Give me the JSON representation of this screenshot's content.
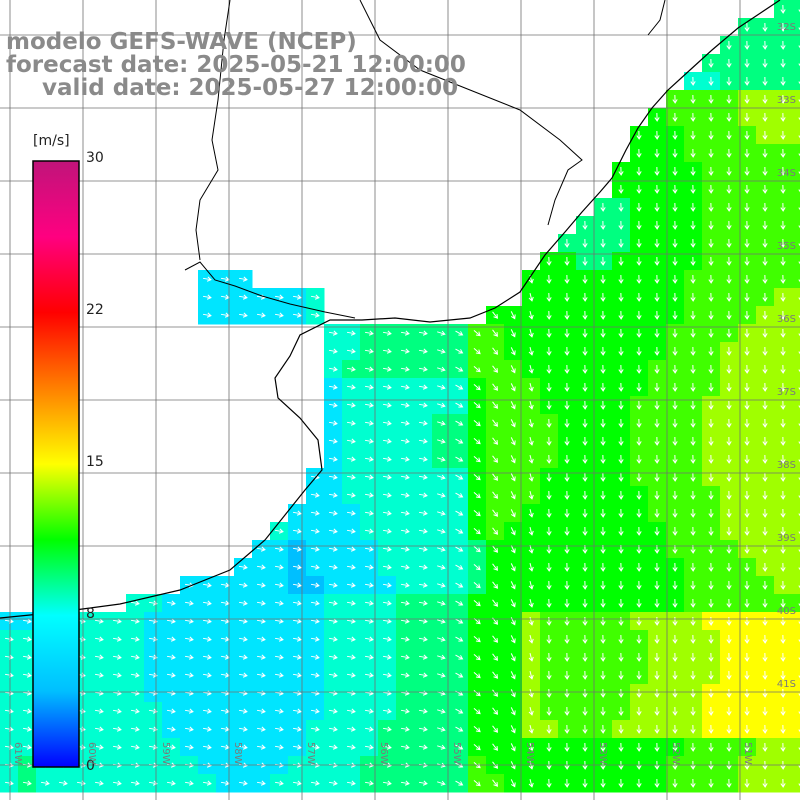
{
  "title": {
    "line1": "modelo GEFS-WAVE (NCEP)",
    "line2": "forecast date: 2025-05-21 12:00:00",
    "line3": "valid date: 2025-05-27 12:00:00"
  },
  "colorbar": {
    "unit": "[m/s]",
    "ticks": [
      "30",
      "22",
      "15",
      "8",
      "0"
    ],
    "range": [
      0,
      30
    ],
    "colors": [
      "#0000ff",
      "#00bfff",
      "#00ffff",
      "#00ff00",
      "#ffff00",
      "#ff8000",
      "#ff0000",
      "#ff0080",
      "#c0147a"
    ]
  },
  "grid": {
    "lat_labels": [
      "32S",
      "33S",
      "34S",
      "35S",
      "36S",
      "37S",
      "38S",
      "39S",
      "40S",
      "41S"
    ],
    "lon_labels": [
      "61W",
      "60W",
      "59W",
      "58W",
      "57W",
      "56W",
      "55W",
      "54W",
      "53W",
      "52W",
      "51W"
    ]
  },
  "colors": {
    "land": "#ffffff",
    "coast": "#000000",
    "grid": "#707070",
    "title": "#8a8a8a",
    "arrow": "#ffffff"
  }
}
